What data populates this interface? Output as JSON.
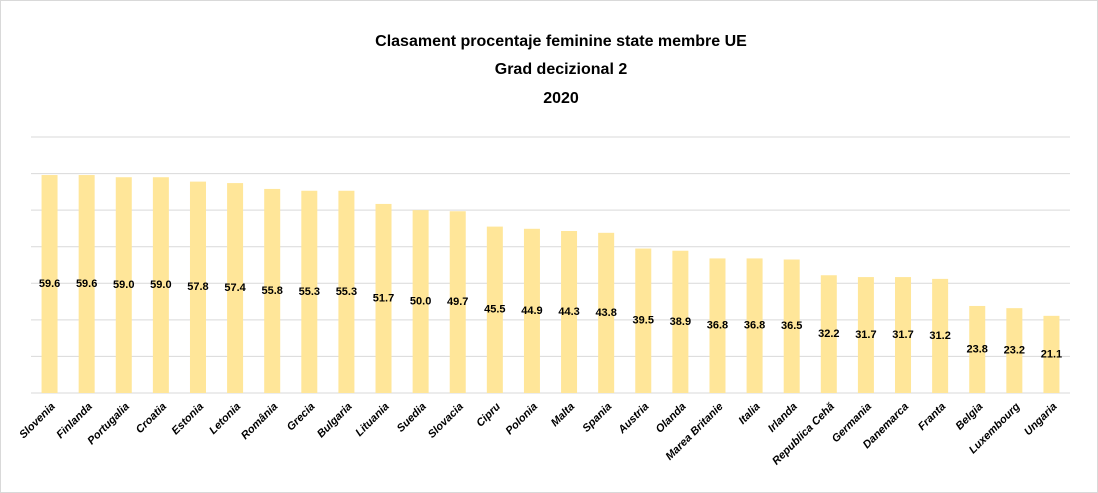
{
  "chart_data": {
    "type": "bar",
    "title": [
      "Clasament procentaje feminine state membre UE",
      "Grad decizional 2",
      "2020"
    ],
    "categories": [
      "Slovenia",
      "Finlanda",
      "Portugalia",
      "Croatia",
      "Estonia",
      "Letonia",
      "România",
      "Grecia",
      "Bulgaria",
      "Lituania",
      "Suedia",
      "Slovacia",
      "Cipru",
      "Polonia",
      "Malta",
      "Spania",
      "Austria",
      "Olanda",
      "Marea Britanie",
      "Italia",
      "Irlanda",
      "Republica Cehă",
      "Germania",
      "Danemarca",
      "Franta",
      "Belgia",
      "Luxembourg",
      "Ungaria"
    ],
    "values": [
      59.6,
      59.6,
      59.0,
      59.0,
      57.8,
      57.4,
      55.8,
      55.3,
      55.3,
      51.7,
      50.0,
      49.7,
      45.5,
      44.9,
      44.3,
      43.8,
      39.5,
      38.9,
      36.8,
      36.8,
      36.5,
      32.2,
      31.7,
      31.7,
      31.2,
      23.8,
      23.2,
      21.1
    ],
    "value_labels": [
      "59.6",
      "59.6",
      "59.0",
      "59.0",
      "57.8",
      "57.4",
      "55.8",
      "55.3",
      "55.3",
      "51.7",
      "50.0",
      "49.7",
      "45.5",
      "44.9",
      "44.3",
      "43.8",
      "39.5",
      "38.9",
      "36.8",
      "36.8",
      "36.5",
      "32.2",
      "31.7",
      "31.7",
      "31.2",
      "23.8",
      "23.2",
      "21.1"
    ],
    "color": "#ffe699",
    "ylim": [
      0,
      70
    ],
    "yticks": [
      0,
      10,
      20,
      30,
      40,
      50,
      60,
      70
    ],
    "grid": true
  }
}
